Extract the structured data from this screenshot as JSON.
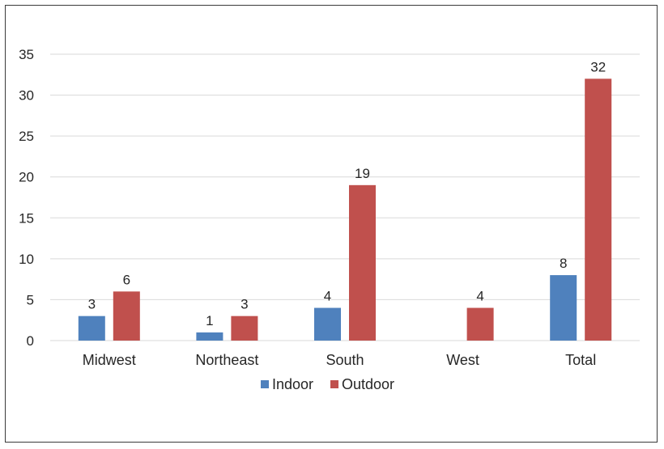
{
  "chart_data": {
    "type": "bar",
    "categories": [
      "Midwest",
      "Northeast",
      "South",
      "West",
      "Total"
    ],
    "series": [
      {
        "name": "Indoor",
        "values": [
          3,
          1,
          4,
          null,
          8
        ],
        "color": "#4F81BD"
      },
      {
        "name": "Outdoor",
        "values": [
          6,
          3,
          19,
          4,
          32
        ],
        "color": "#C0504D"
      }
    ],
    "yticks": [
      0,
      5,
      10,
      15,
      20,
      25,
      30,
      35
    ],
    "ylim": [
      0,
      35
    ],
    "grid": true,
    "gridColor": "#d9d9d9",
    "legend": "bottom-center",
    "title": "",
    "xlabel": "",
    "ylabel": ""
  }
}
